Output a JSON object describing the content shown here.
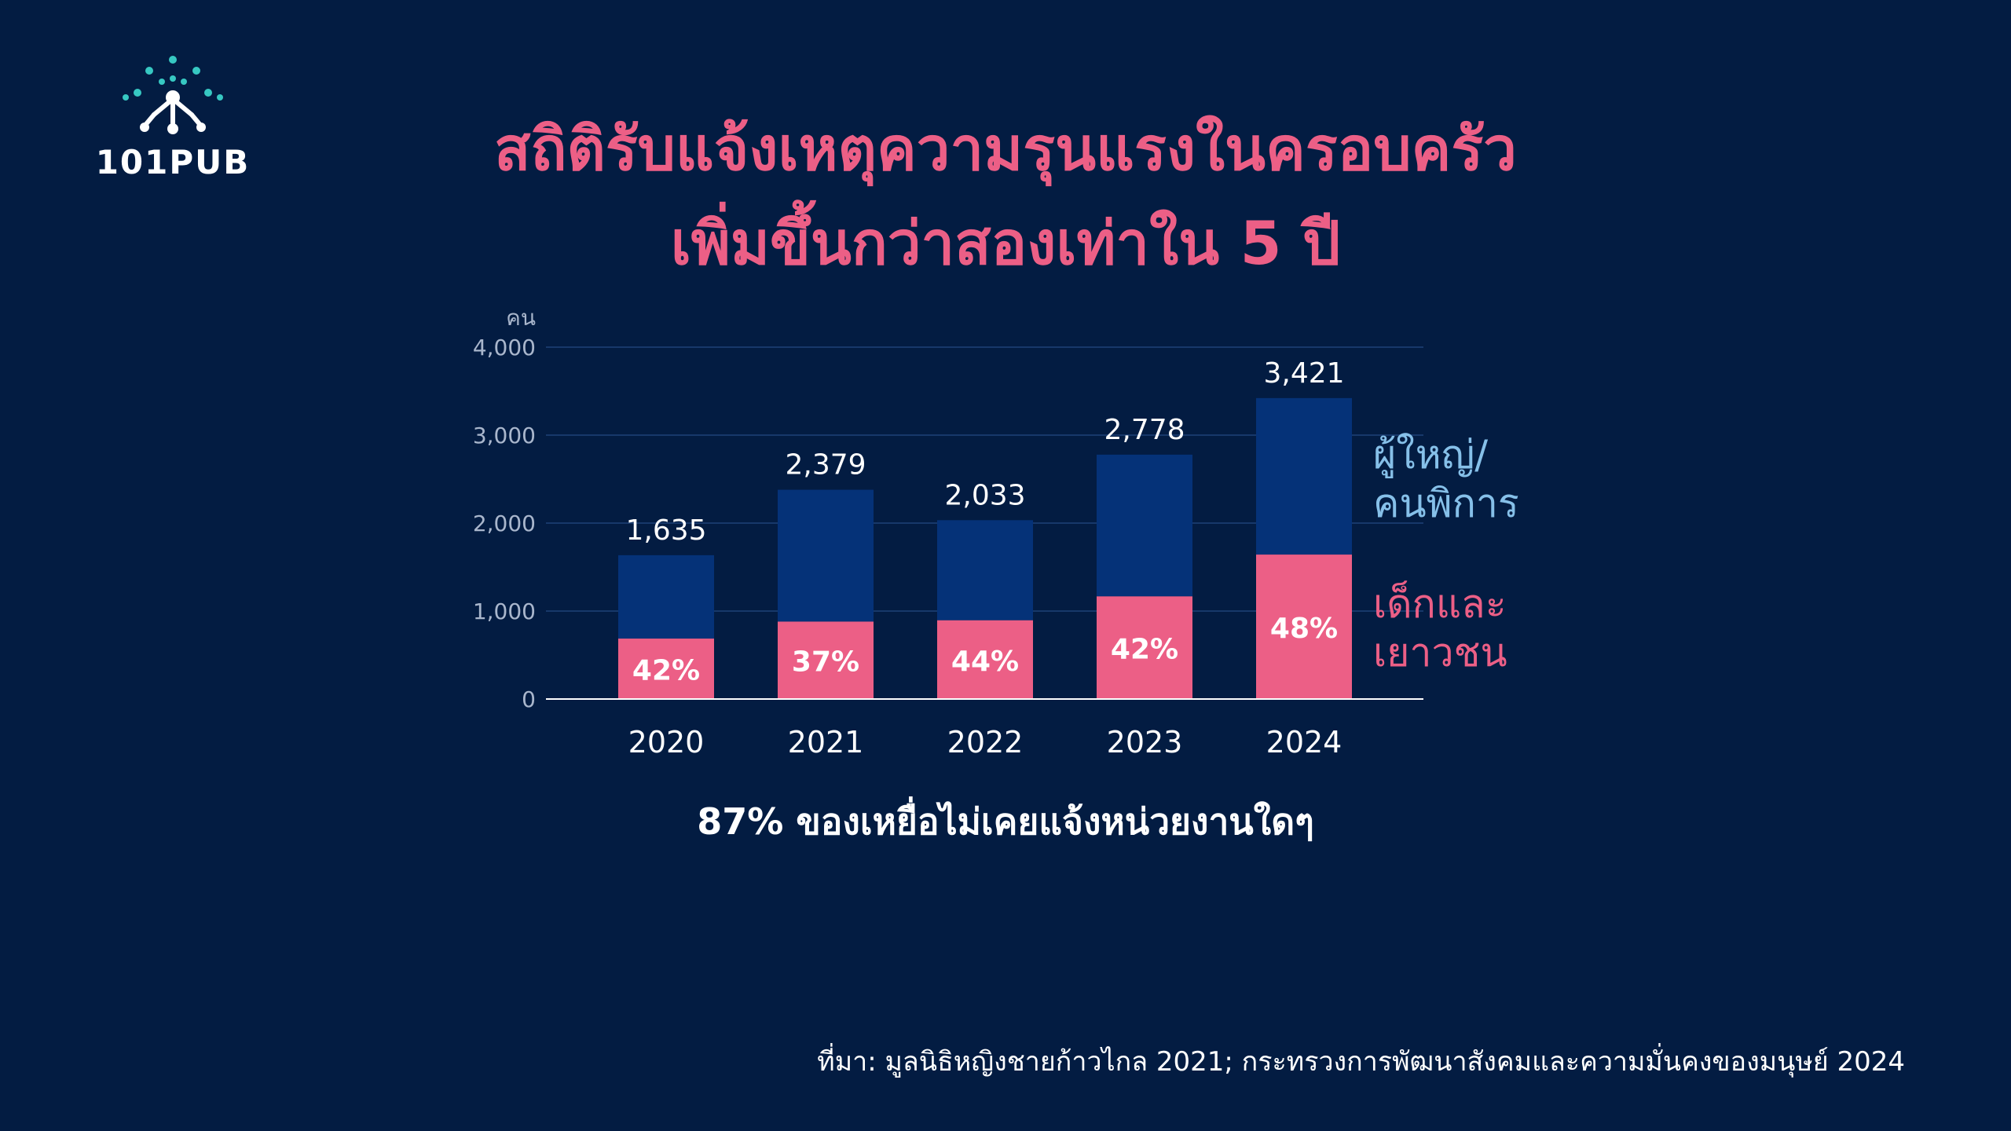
{
  "brand": {
    "name": "101PUB"
  },
  "title": {
    "line1": "สถิติรับแจ้งเหตุความรุนแรงในครอบครัว",
    "line2": "เพิ่มขึ้นกว่าสองเท่าใน 5 ปี"
  },
  "colors": {
    "background": "#031c42",
    "adult_bar": "#053278",
    "child_bar": "#ec5f86",
    "accent_teal": "#37c8c2",
    "legend_adult": "#86c0e9"
  },
  "chart_data": {
    "type": "bar",
    "stacked": true,
    "categories": [
      "2020",
      "2021",
      "2022",
      "2023",
      "2024"
    ],
    "ylabel": "คน",
    "ylim": [
      0,
      4000
    ],
    "yticks": [
      "0",
      "1,000",
      "2,000",
      "3,000",
      "4,000"
    ],
    "ytick_values": [
      0,
      1000,
      2000,
      3000,
      4000
    ],
    "grid": true,
    "totals": [
      1635,
      2379,
      2033,
      2778,
      3421
    ],
    "total_labels": [
      "1,635",
      "2,379",
      "2,033",
      "2,778",
      "3,421"
    ],
    "series": [
      {
        "name": "เด็กและเยาวชน",
        "values": [
          687,
          880,
          895,
          1167,
          1642
        ]
      },
      {
        "name": "ผู้ใหญ่/คนพิการ",
        "values": [
          948,
          1499,
          1138,
          1611,
          1779
        ]
      }
    ],
    "child_share_labels": [
      "42%",
      "37%",
      "44%",
      "42%",
      "48%"
    ],
    "legend": {
      "adult_line1": "ผู้ใหญ่/",
      "adult_line2": "คนพิการ",
      "child_line1": "เด็กและ",
      "child_line2": "เยาวชน"
    }
  },
  "note": "87% ของเหยื่อไม่เคยแจ้งหน่วยงานใดๆ",
  "source": "ที่มา: มูลนิธิหญิงชายก้าวไกล 2021; กระทรวงการพัฒนาสังคมและความมั่นคงของมนุษย์ 2024"
}
